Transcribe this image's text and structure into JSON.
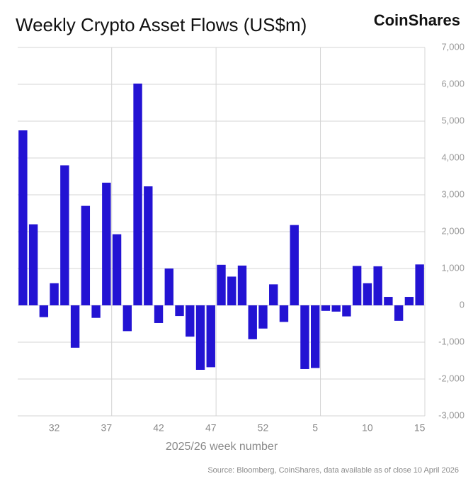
{
  "chart_data": {
    "type": "bar",
    "title": "Weekly Crypto Asset Flows (US$m)",
    "brand": "CoinShares",
    "x_label": "2025/26 week number",
    "source": "Source: Bloomberg, CoinShares, data available as of close 10 April 2026",
    "categories": [
      null,
      null,
      null,
      "32",
      null,
      null,
      null,
      null,
      "37",
      null,
      null,
      null,
      null,
      "42",
      null,
      null,
      null,
      null,
      "47",
      null,
      null,
      null,
      null,
      "52",
      null,
      null,
      null,
      null,
      "5",
      null,
      null,
      null,
      null,
      "10",
      null,
      null,
      null,
      null,
      "15"
    ],
    "values": [
      4750,
      2200,
      -320,
      600,
      3800,
      -1150,
      2700,
      -340,
      3330,
      1930,
      -700,
      6020,
      3230,
      -480,
      1000,
      -290,
      -850,
      -1750,
      -1680,
      1100,
      780,
      1080,
      -920,
      -630,
      570,
      -450,
      2180,
      -1730,
      -1700,
      -150,
      -170,
      -300,
      1070,
      600,
      1060,
      230,
      -420,
      230,
      1110
    ],
    "color": "#2313d3",
    "ylim": [
      -3000,
      7000
    ],
    "yticks": [
      {
        "value": -3000,
        "label": "-3,000"
      },
      {
        "value": -2000,
        "label": "-2,000"
      },
      {
        "value": -1000,
        "label": "-1,000"
      },
      0,
      {
        "value": 1000,
        "label": "1,000"
      },
      {
        "value": 2000,
        "label": "2,000"
      },
      {
        "value": 3000,
        "label": "3,000"
      },
      {
        "value": 4000,
        "label": "4,000"
      },
      {
        "value": 5000,
        "label": "5,000"
      },
      {
        "value": 6000,
        "label": "6,000"
      },
      {
        "value": 7000,
        "label": "7,000"
      }
    ],
    "grid": true
  }
}
